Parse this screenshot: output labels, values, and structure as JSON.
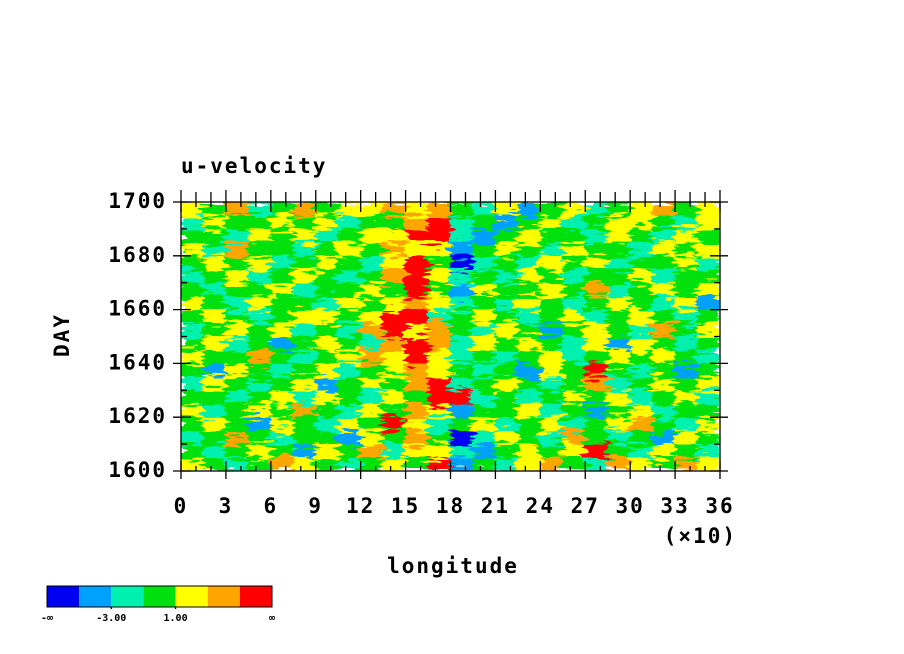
{
  "chart_data": {
    "type": "heatmap",
    "title": "u-velocity",
    "xlabel": "longitude",
    "ylabel": "DAY",
    "x_scale_label": "(×10)",
    "xlim": [
      0,
      36
    ],
    "ylim": [
      1600,
      1700
    ],
    "xticks": [
      0,
      3,
      6,
      9,
      12,
      15,
      18,
      21,
      24,
      27,
      30,
      33,
      36
    ],
    "yticks": [
      1600,
      1620,
      1640,
      1660,
      1680,
      1700
    ],
    "xminorticks": [
      1,
      2,
      4,
      5,
      7,
      8,
      10,
      11,
      13,
      14,
      16,
      17,
      19,
      20,
      22,
      23,
      25,
      26,
      28,
      29,
      31,
      32,
      34,
      35
    ],
    "yminorticks": [
      1610,
      1630,
      1650,
      1670,
      1690
    ],
    "levels": [
      -5,
      -3,
      -1,
      1,
      3,
      5
    ],
    "colors": [
      "#0000f0",
      "#00a0ff",
      "#00f0b0",
      "#00e010",
      "#ffff00",
      "#ffa500",
      "#ff0000"
    ],
    "colorbar_low_label": "-∞",
    "colorbar_high_label": "∞",
    "colorbar_ticks": [
      {
        "value": -3,
        "label": "-3.00"
      },
      {
        "value": 1,
        "label": "1.00"
      }
    ],
    "x": [
      0.75,
      2.25,
      3.75,
      5.25,
      6.75,
      8.25,
      9.75,
      11.25,
      12.75,
      14.25,
      15.75,
      17.25,
      18.75,
      20.25,
      21.75,
      23.25,
      24.75,
      26.25,
      27.75,
      29.25,
      30.75,
      32.25,
      33.75,
      35.25
    ],
    "y": [
      1602.5,
      1607.5,
      1612.5,
      1617.5,
      1622.5,
      1627.5,
      1632.5,
      1637.5,
      1642.5,
      1647.5,
      1652.5,
      1657.5,
      1662.5,
      1667.5,
      1672.5,
      1677.5,
      1682.5,
      1687.5,
      1692.5,
      1697.5
    ],
    "z": [
      [
        2,
        0,
        -2,
        0,
        4,
        2,
        0,
        -2,
        0,
        2,
        0,
        6,
        -4,
        0,
        -2,
        2,
        4,
        0,
        -2,
        4,
        2,
        0,
        4,
        2
      ],
      [
        0,
        -2,
        0,
        2,
        0,
        -4,
        2,
        0,
        4,
        -2,
        2,
        2,
        -2,
        -4,
        0,
        2,
        0,
        2,
        6,
        0,
        -2,
        2,
        0,
        -2
      ],
      [
        -2,
        0,
        4,
        0,
        -2,
        0,
        0,
        -4,
        2,
        0,
        4,
        0,
        -6,
        -2,
        2,
        0,
        -2,
        4,
        0,
        -2,
        0,
        -4,
        2,
        0
      ],
      [
        0,
        2,
        0,
        -4,
        2,
        0,
        -2,
        2,
        0,
        6,
        2,
        -2,
        0,
        2,
        -2,
        0,
        2,
        -2,
        0,
        2,
        4,
        0,
        -2,
        2
      ],
      [
        2,
        -2,
        0,
        2,
        0,
        4,
        0,
        -2,
        2,
        0,
        4,
        2,
        -4,
        0,
        0,
        2,
        -2,
        0,
        -4,
        0,
        2,
        -2,
        0,
        0
      ],
      [
        0,
        0,
        -2,
        0,
        2,
        -2,
        2,
        0,
        -2,
        2,
        0,
        6,
        6,
        -2,
        0,
        -2,
        0,
        2,
        0,
        2,
        -2,
        0,
        2,
        -2
      ],
      [
        -2,
        2,
        0,
        -2,
        0,
        2,
        -4,
        0,
        2,
        0,
        4,
        6,
        -2,
        0,
        2,
        0,
        -2,
        0,
        4,
        -2,
        0,
        2,
        0,
        2
      ],
      [
        0,
        -4,
        2,
        0,
        -2,
        0,
        2,
        -2,
        0,
        2,
        4,
        2,
        0,
        -2,
        0,
        -4,
        2,
        0,
        6,
        0,
        -2,
        0,
        -4,
        0
      ],
      [
        2,
        0,
        0,
        4,
        0,
        -2,
        0,
        2,
        4,
        2,
        6,
        2,
        -2,
        0,
        -2,
        0,
        2,
        -2,
        0,
        2,
        0,
        2,
        0,
        -2
      ],
      [
        0,
        2,
        -2,
        0,
        -4,
        0,
        2,
        0,
        -2,
        4,
        6,
        4,
        -2,
        2,
        0,
        2,
        0,
        -2,
        2,
        -4,
        2,
        0,
        -2,
        0
      ],
      [
        -2,
        0,
        2,
        0,
        2,
        -2,
        0,
        -2,
        4,
        6,
        2,
        4,
        0,
        -2,
        2,
        0,
        -4,
        0,
        2,
        0,
        -2,
        4,
        0,
        2
      ],
      [
        0,
        2,
        0,
        -2,
        0,
        2,
        2,
        0,
        2,
        6,
        6,
        -2,
        0,
        2,
        0,
        -2,
        0,
        2,
        -2,
        0,
        2,
        0,
        -2,
        0
      ],
      [
        2,
        0,
        -2,
        2,
        0,
        0,
        -2,
        2,
        0,
        2,
        4,
        2,
        -2,
        0,
        -2,
        2,
        0,
        -2,
        0,
        2,
        0,
        -2,
        2,
        -4
      ],
      [
        0,
        -2,
        0,
        0,
        2,
        -2,
        0,
        0,
        2,
        0,
        6,
        0,
        -4,
        2,
        0,
        0,
        2,
        0,
        4,
        -2,
        0,
        2,
        0,
        2
      ],
      [
        -2,
        0,
        2,
        -2,
        0,
        2,
        0,
        -2,
        0,
        4,
        6,
        2,
        -2,
        0,
        -2,
        2,
        0,
        -2,
        0,
        0,
        2,
        -2,
        0,
        0
      ],
      [
        0,
        2,
        0,
        2,
        -2,
        0,
        2,
        0,
        -2,
        2,
        6,
        0,
        -6,
        -2,
        0,
        -2,
        2,
        0,
        2,
        -2,
        0,
        0,
        2,
        -2
      ],
      [
        2,
        -2,
        4,
        0,
        0,
        -2,
        0,
        2,
        0,
        4,
        2,
        2,
        -4,
        0,
        2,
        0,
        -2,
        2,
        0,
        0,
        -2,
        2,
        0,
        2
      ],
      [
        0,
        0,
        -2,
        2,
        0,
        2,
        -2,
        0,
        2,
        2,
        6,
        6,
        -2,
        -4,
        0,
        2,
        0,
        0,
        -2,
        2,
        0,
        -2,
        2,
        0
      ],
      [
        -2,
        2,
        0,
        0,
        2,
        0,
        2,
        -2,
        0,
        0,
        4,
        6,
        -2,
        0,
        -4,
        0,
        2,
        -2,
        0,
        2,
        2,
        0,
        -2,
        2
      ],
      [
        2,
        0,
        4,
        -2,
        0,
        4,
        0,
        2,
        2,
        4,
        2,
        4,
        0,
        -2,
        2,
        -4,
        0,
        2,
        -2,
        0,
        2,
        4,
        0,
        2
      ]
    ]
  }
}
